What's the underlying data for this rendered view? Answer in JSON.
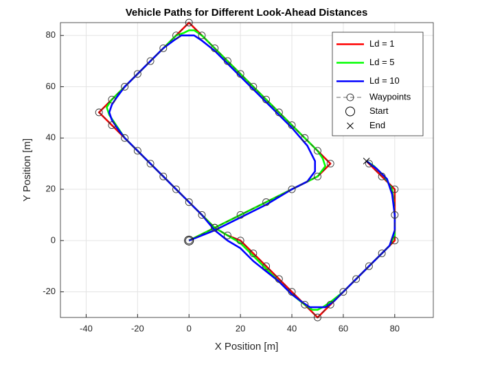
{
  "chart_data": {
    "type": "line",
    "title": "Vehicle Paths for Different Look-Ahead Distances",
    "x_label": "X Position [m]",
    "y_label": "Y Position [m]",
    "xlim": [
      -50,
      95
    ],
    "ylim": [
      -30,
      85
    ],
    "xticks": [
      -40,
      -20,
      0,
      20,
      40,
      60,
      80
    ],
    "yticks": [
      -20,
      0,
      20,
      40,
      60,
      80
    ],
    "grid": true,
    "legend": "upper right",
    "series": [
      {
        "name": "Ld = 1",
        "color": "#ff0000",
        "line": "solid",
        "marker": "none",
        "x": [
          0,
          10,
          20,
          30,
          40,
          50,
          55,
          50,
          45,
          40,
          35,
          30,
          25,
          20,
          15,
          10,
          5,
          0,
          -5,
          -10,
          -15,
          -20,
          -25,
          -30,
          -35,
          -30,
          -25,
          -20,
          -15,
          -10,
          -5,
          0,
          5,
          10,
          15,
          20,
          25,
          30,
          35,
          40,
          45,
          50,
          55,
          60,
          65,
          70,
          75,
          80,
          80,
          80,
          75,
          69
        ],
        "y": [
          0,
          5,
          10,
          15,
          20,
          25,
          30,
          35,
          40,
          45,
          50,
          55,
          60,
          65,
          70,
          75,
          80,
          85,
          80,
          75,
          70,
          65,
          60,
          55,
          50,
          45,
          40,
          35,
          30,
          25,
          20,
          15,
          10,
          5,
          2,
          0,
          -5,
          -10,
          -15,
          -20,
          -25,
          -30,
          -25,
          -20,
          -15,
          -10,
          -5,
          0,
          10,
          20,
          25,
          31
        ]
      },
      {
        "name": "Ld = 5",
        "color": "#00ff00",
        "line": "solid",
        "marker": "none",
        "x": [
          0,
          10,
          20,
          30,
          40,
          50,
          53,
          52,
          50,
          45,
          40,
          35,
          30,
          25,
          20,
          15,
          10,
          5,
          2,
          0,
          -2,
          -5,
          -10,
          -15,
          -20,
          -25,
          -30,
          -32,
          -31,
          -29,
          -25,
          -20,
          -15,
          -10,
          -5,
          0,
          5,
          10,
          15,
          20,
          25,
          30,
          35,
          40,
          45,
          48,
          50,
          52,
          55,
          60,
          65,
          70,
          75,
          78,
          80,
          80,
          79,
          76,
          72,
          69
        ],
        "y": [
          0,
          5,
          10,
          15,
          20,
          25,
          29,
          32,
          35,
          40,
          45,
          50,
          55,
          60,
          65,
          70,
          75,
          80,
          82,
          82,
          81,
          80,
          75,
          70,
          65,
          60,
          55,
          52,
          49,
          46,
          40,
          35,
          30,
          25,
          20,
          15,
          10,
          5,
          2,
          -1,
          -6,
          -11,
          -16,
          -21,
          -25,
          -27,
          -27,
          -26,
          -24,
          -20,
          -15,
          -10,
          -5,
          -2,
          2,
          10,
          20,
          25,
          29,
          31
        ]
      },
      {
        "name": "Ld = 10",
        "color": "#0000ff",
        "line": "solid",
        "marker": "none",
        "x": [
          0,
          10,
          20,
          30,
          40,
          46,
          49,
          49,
          46,
          40,
          35,
          30,
          25,
          20,
          15,
          10,
          5,
          2,
          0,
          -3,
          -6,
          -10,
          -15,
          -20,
          -25,
          -28,
          -30,
          -31,
          -30,
          -28,
          -25,
          -20,
          -15,
          -10,
          -5,
          0,
          5,
          10,
          15,
          20,
          25,
          30,
          35,
          40,
          44,
          47,
          50,
          53,
          56,
          60,
          65,
          70,
          75,
          78,
          80,
          80,
          79,
          77,
          73,
          69
        ],
        "y": [
          0,
          4,
          9,
          14,
          20,
          23,
          27,
          31,
          37,
          44,
          49,
          54,
          59,
          64,
          69,
          74,
          78,
          80,
          80,
          80,
          78,
          75,
          70,
          65,
          60,
          56,
          53,
          50,
          47,
          44,
          40,
          35,
          30,
          25,
          20,
          15,
          10,
          4,
          0,
          -3,
          -8,
          -12,
          -16,
          -21,
          -24,
          -26,
          -26,
          -26,
          -24,
          -20,
          -15,
          -10,
          -5,
          -2,
          4,
          10,
          18,
          24,
          28,
          31
        ]
      },
      {
        "name": "Waypoints",
        "color": "#333333",
        "line": "dashed",
        "marker": "circle",
        "x": [
          0,
          10,
          20,
          30,
          40,
          50,
          55,
          50,
          45,
          40,
          35,
          30,
          25,
          20,
          15,
          10,
          5,
          0,
          -5,
          -10,
          -15,
          -20,
          -25,
          -30,
          -35,
          -30,
          -25,
          -20,
          -15,
          -10,
          -5,
          0,
          5,
          10,
          15,
          20,
          25,
          30,
          35,
          40,
          45,
          50,
          55,
          60,
          65,
          70,
          75,
          80,
          80,
          80,
          75,
          70
        ],
        "y": [
          0,
          5,
          10,
          15,
          20,
          25,
          30,
          35,
          40,
          45,
          50,
          55,
          60,
          65,
          70,
          75,
          80,
          85,
          80,
          75,
          70,
          65,
          60,
          55,
          50,
          45,
          40,
          35,
          30,
          25,
          20,
          15,
          10,
          5,
          2,
          0,
          -5,
          -10,
          -15,
          -20,
          -25,
          -30,
          -25,
          -20,
          -15,
          -10,
          -5,
          0,
          10,
          20,
          25,
          30
        ]
      },
      {
        "name": "Start",
        "color": "#000000",
        "line": "none",
        "marker": "big-circle",
        "x": [
          0
        ],
        "y": [
          0
        ]
      },
      {
        "name": "End",
        "color": "#000000",
        "line": "none",
        "marker": "cross",
        "x": [
          69
        ],
        "y": [
          31
        ]
      }
    ]
  }
}
